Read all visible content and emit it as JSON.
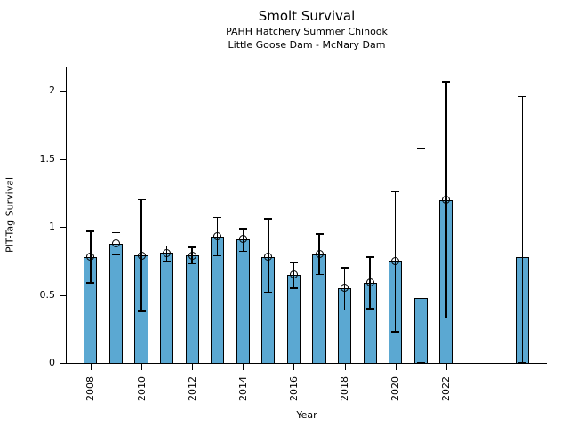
{
  "chart_data": {
    "type": "bar",
    "title": "Smolt Survival",
    "subtitle": [
      "PAHH Hatchery Summer Chinook",
      "Little Goose Dam - McNary Dam"
    ],
    "xlabel": "Year",
    "ylabel": "PIT-Tag Survival",
    "xlim": [
      2007.06,
      2025.96
    ],
    "ylim": [
      0,
      2.18
    ],
    "yticks": [
      0,
      0.5,
      1,
      1.5,
      2
    ],
    "xticks": [
      2008,
      2010,
      2012,
      2014,
      2016,
      2018,
      2020,
      2022
    ],
    "grid": false,
    "legend": false,
    "bar_color": "#5BA8D2",
    "bar_edge_color": "#000000",
    "error_color": "#000000",
    "bar_width_years": 0.53,
    "points": [
      {
        "year": 2008,
        "value": 0.78,
        "ci_low": 0.59,
        "ci_high": 0.97,
        "marker": true
      },
      {
        "year": 2009,
        "value": 0.88,
        "ci_low": 0.8,
        "ci_high": 0.96,
        "marker": true
      },
      {
        "year": 2010,
        "value": 0.79,
        "ci_low": 0.38,
        "ci_high": 1.2,
        "marker": true
      },
      {
        "year": 2011,
        "value": 0.81,
        "ci_low": 0.75,
        "ci_high": 0.86,
        "marker": true
      },
      {
        "year": 2012,
        "value": 0.79,
        "ci_low": 0.73,
        "ci_high": 0.85,
        "marker": true
      },
      {
        "year": 2013,
        "value": 0.93,
        "ci_low": 0.79,
        "ci_high": 1.07,
        "marker": true
      },
      {
        "year": 2014,
        "value": 0.91,
        "ci_low": 0.82,
        "ci_high": 0.99,
        "marker": true
      },
      {
        "year": 2015,
        "value": 0.78,
        "ci_low": 0.52,
        "ci_high": 1.06,
        "marker": true
      },
      {
        "year": 2016,
        "value": 0.65,
        "ci_low": 0.55,
        "ci_high": 0.74,
        "marker": true
      },
      {
        "year": 2017,
        "value": 0.8,
        "ci_low": 0.65,
        "ci_high": 0.95,
        "marker": true
      },
      {
        "year": 2018,
        "value": 0.55,
        "ci_low": 0.39,
        "ci_high": 0.7,
        "marker": true
      },
      {
        "year": 2019,
        "value": 0.59,
        "ci_low": 0.4,
        "ci_high": 0.78,
        "marker": true
      },
      {
        "year": 2020,
        "value": 0.75,
        "ci_low": 0.23,
        "ci_high": 1.26,
        "marker": true
      },
      {
        "year": 2021,
        "value": 0.48,
        "ci_low": 0.0,
        "ci_high": 1.58,
        "marker": false
      },
      {
        "year": 2022,
        "value": 1.2,
        "ci_low": 0.33,
        "ci_high": 2.07,
        "marker": true
      },
      {
        "year": 2025,
        "value": 0.78,
        "ci_low": 0.0,
        "ci_high": 1.96,
        "marker": false
      }
    ]
  }
}
